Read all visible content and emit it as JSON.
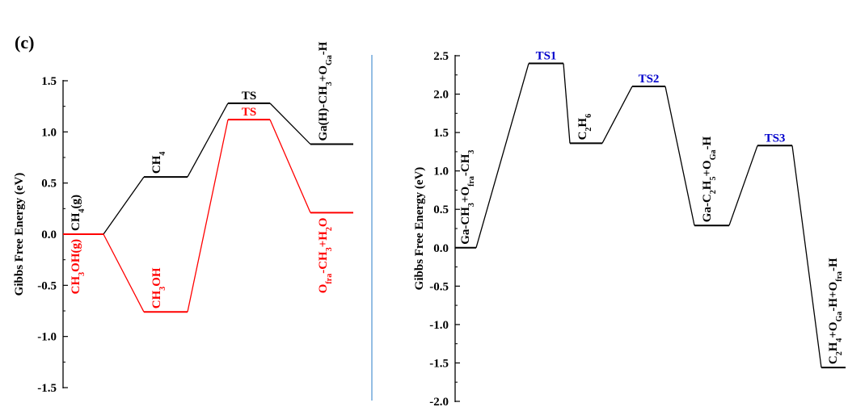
{
  "panel_label": "(c)",
  "colors": {
    "black": "#000000",
    "red": "#ff0000",
    "blue": "#0000cc",
    "divider": "#5b9bd5"
  },
  "chart_data": [
    {
      "type": "line",
      "title": "",
      "xlabel": "",
      "ylabel": "Gibbs Free Energy (eV)",
      "ylim": [
        -1.5,
        1.5
      ],
      "yticks": [
        "-1.5",
        "-1.0",
        "-0.5",
        "0.0",
        "0.5",
        "1.0",
        "1.5"
      ],
      "grid": false,
      "legend": "none",
      "series": [
        {
          "color": "#000000",
          "levels": [
            {
              "value": 0.0,
              "label": "CH|4|(g)",
              "label_mode": "vertical"
            },
            {
              "value": 0.56,
              "label": "CH|4",
              "label_mode": "vertical"
            },
            {
              "value": 1.28,
              "label": "TS",
              "label_mode": "horizontal"
            },
            {
              "value": 0.88,
              "label": "Ga(H)-CH|3|+O|Ga|-H",
              "label_mode": "vertical"
            }
          ]
        },
        {
          "color": "#ff0000",
          "levels": [
            {
              "value": 0.0,
              "label": "CH|3|OH(g)",
              "label_mode": "vertical-below"
            },
            {
              "value": -0.76,
              "label": "CH|3|OH",
              "label_mode": "vertical"
            },
            {
              "value": 1.12,
              "label": "TS",
              "label_mode": "horizontal"
            },
            {
              "value": 0.21,
              "label": "O|fra|-CH|3|+H|2|O",
              "label_mode": "vertical-below"
            }
          ]
        }
      ]
    },
    {
      "type": "line",
      "title": "",
      "xlabel": "",
      "ylabel": "Gibbs Free Energy (eV)",
      "ylim": [
        -2.0,
        2.5
      ],
      "yticks": [
        "-2.0",
        "-1.5",
        "-1.0",
        "-0.5",
        "0.0",
        "0.5",
        "1.0",
        "1.5",
        "2.0",
        "2.5"
      ],
      "grid": false,
      "legend": "none",
      "series": [
        {
          "color": "#000000",
          "levels": [
            {
              "value": 0.0,
              "label": "Ga-CH|3|+O|fra|-CH|3",
              "label_mode": "vertical"
            },
            {
              "value": 2.4,
              "label": "TS1",
              "label_mode": "horizontal-blue"
            },
            {
              "value": 1.36,
              "label": "C|2|H|6",
              "label_mode": "vertical"
            },
            {
              "value": 2.1,
              "label": "TS2",
              "label_mode": "horizontal-blue"
            },
            {
              "value": 0.29,
              "label": "Ga-C|2|H|5|+O|Ga|-H",
              "label_mode": "vertical"
            },
            {
              "value": 1.33,
              "label": "TS3",
              "label_mode": "horizontal-blue"
            },
            {
              "value": -1.56,
              "label": "C|2|H|4|+O|Ga|-H+O|fra|-H",
              "label_mode": "vertical"
            }
          ]
        }
      ]
    }
  ]
}
